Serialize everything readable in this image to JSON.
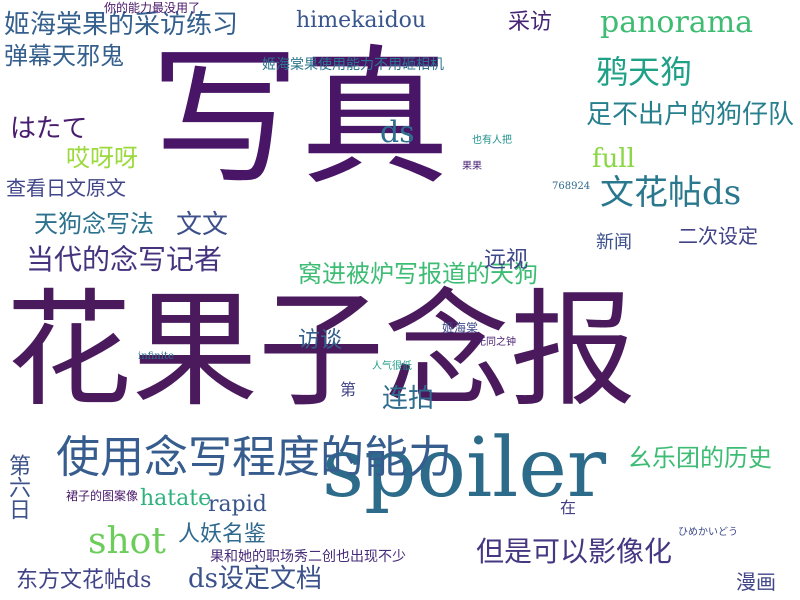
{
  "wordcloud": {
    "words": [
      {
        "text": "花果子念报",
        "color": "#4a1a5c",
        "size": 126,
        "vertical": false
      },
      {
        "text": "写真",
        "color": "#481567",
        "size": 150,
        "vertical": false
      },
      {
        "text": "spoiler",
        "color": "#2d6b8a",
        "size": 82,
        "vertical": false
      },
      {
        "text": "使用念写程度的能力",
        "color": "#365d8d",
        "size": 44,
        "vertical": false
      },
      {
        "text": "姬海棠果的采访练习",
        "color": "#35608d",
        "size": 26,
        "vertical": false
      },
      {
        "text": "panorama",
        "color": "#3fbc73",
        "size": 30,
        "vertical": false
      },
      {
        "text": "himekaidou",
        "color": "#39568c",
        "size": 22,
        "vertical": false
      },
      {
        "text": "鸦天狗",
        "color": "#1fa187",
        "size": 32,
        "vertical": false
      },
      {
        "text": "足不出户的狗仔队",
        "color": "#277f8e",
        "size": 26,
        "vertical": false
      },
      {
        "text": "弹幕天邪鬼",
        "color": "#355f8d",
        "size": 24,
        "vertical": false
      },
      {
        "text": "窝进被炉写报道的天狗",
        "color": "#3dbc74",
        "size": 24,
        "vertical": false
      },
      {
        "text": "当代的念写记者",
        "color": "#46337e",
        "size": 28,
        "vertical": false
      },
      {
        "text": "天狗念写法",
        "color": "#2c728e",
        "size": 24,
        "vertical": false
      },
      {
        "text": "文花帖ds",
        "color": "#2a788e",
        "size": 34,
        "vertical": false
      },
      {
        "text": "但是可以影像化",
        "color": "#453781",
        "size": 28,
        "vertical": false
      },
      {
        "text": "shot",
        "color": "#6ccd5a",
        "size": 36,
        "vertical": false
      },
      {
        "text": "ds设定文档",
        "color": "#3b528b",
        "size": 26,
        "vertical": false
      },
      {
        "text": "东方文花帖ds",
        "color": "#414487",
        "size": 22,
        "vertical": false
      },
      {
        "text": "幺乐团的历史",
        "color": "#3dbc74",
        "size": 24,
        "vertical": false
      },
      {
        "text": "连拍",
        "color": "#2f6c8e",
        "size": 26,
        "vertical": false
      },
      {
        "text": "访谈",
        "color": "#34608d",
        "size": 22,
        "vertical": false
      },
      {
        "text": "哎呀呀",
        "color": "#9bd93c",
        "size": 24,
        "vertical": false
      },
      {
        "text": "はたて",
        "color": "#481c6e",
        "size": 26,
        "vertical": false
      },
      {
        "text": "查看日文原文",
        "color": "#404688",
        "size": 20,
        "vertical": false
      },
      {
        "text": "文文",
        "color": "#3c4f8a",
        "size": 26,
        "vertical": false
      },
      {
        "text": "full",
        "color": "#8bd646",
        "size": 26,
        "vertical": false
      },
      {
        "text": "ds",
        "color": "#2e6e8e",
        "size": 30,
        "vertical": false
      },
      {
        "text": "采访",
        "color": "#482475",
        "size": 22,
        "vertical": false
      },
      {
        "text": "hatate",
        "color": "#2db27d",
        "size": 22,
        "vertical": false
      },
      {
        "text": "rapid",
        "color": "#3a548c",
        "size": 22,
        "vertical": false
      },
      {
        "text": "人妖名鉴",
        "color": "#30698e",
        "size": 22,
        "vertical": false
      },
      {
        "text": "漫画",
        "color": "#404688",
        "size": 20,
        "vertical": false
      },
      {
        "text": "新闻",
        "color": "#3b518b",
        "size": 18,
        "vertical": false
      },
      {
        "text": "远视",
        "color": "#3f4889",
        "size": 22,
        "vertical": false
      },
      {
        "text": "二次设定",
        "color": "#414287",
        "size": 20,
        "vertical": false
      },
      {
        "text": "第六日",
        "color": "#3b528b",
        "size": 22,
        "vertical": true
      },
      {
        "text": "第",
        "color": "#404387",
        "size": 16,
        "vertical": false
      },
      {
        "text": "在",
        "color": "#433e85",
        "size": 16,
        "vertical": false
      },
      {
        "text": "果和她的职场秀二创也出现不少",
        "color": "#472c7a",
        "size": 14,
        "vertical": false
      },
      {
        "text": "姬海棠果使用能力不用砸相机",
        "color": "#2b748e",
        "size": 14,
        "vertical": false
      },
      {
        "text": "裙子的图案像",
        "color": "#481769",
        "size": 12,
        "vertical": false
      },
      {
        "text": "你的能力最没用了",
        "color": "#481769",
        "size": 12,
        "vertical": false
      },
      {
        "text": "infinite",
        "color": "#2d708e",
        "size": 10,
        "vertical": false
      },
      {
        "text": "无同之钟",
        "color": "#482071",
        "size": 10,
        "vertical": false
      },
      {
        "text": "768924",
        "color": "#30698e",
        "size": 10,
        "vertical": false
      },
      {
        "text": "姬海棠",
        "color": "#3e4989",
        "size": 12,
        "vertical": false
      },
      {
        "text": "人气很低",
        "color": "#1f9e89",
        "size": 10,
        "vertical": false
      },
      {
        "text": "也有人把",
        "color": "#20928c",
        "size": 10,
        "vertical": false
      },
      {
        "text": "果果",
        "color": "#481f70",
        "size": 10,
        "vertical": false
      },
      {
        "text": "ひめかいどう",
        "color": "#3e4989",
        "size": 10,
        "vertical": false
      }
    ]
  }
}
